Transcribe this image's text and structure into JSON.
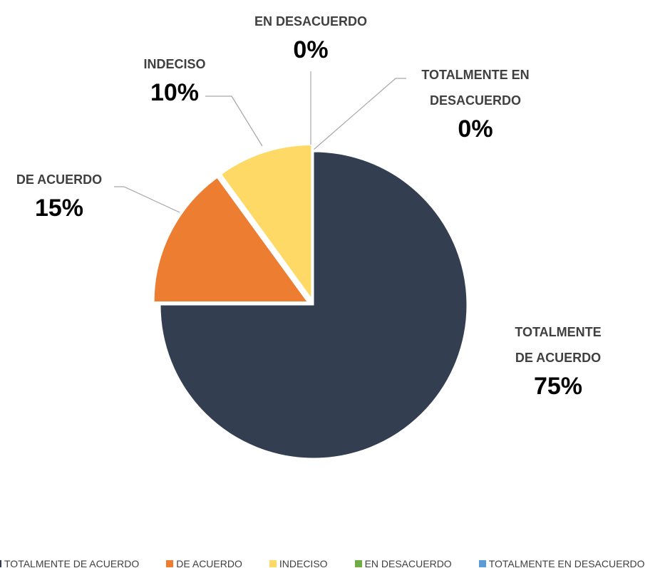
{
  "chart_data": {
    "type": "pie",
    "categories": [
      "TOTALMENTE DE ACUERDO",
      "DE ACUERDO",
      "INDECISO",
      "EN DESACUERDO",
      "TOTALMENTE EN DESACUERDO"
    ],
    "values": [
      75,
      15,
      10,
      0,
      0
    ],
    "value_labels": [
      "75%",
      "15%",
      "10%",
      "0%",
      "0%"
    ],
    "colors": [
      "#333f50",
      "#ed7d31",
      "#ffd966",
      "#70ad47",
      "#5b9bd5"
    ],
    "legend": "bottom"
  }
}
